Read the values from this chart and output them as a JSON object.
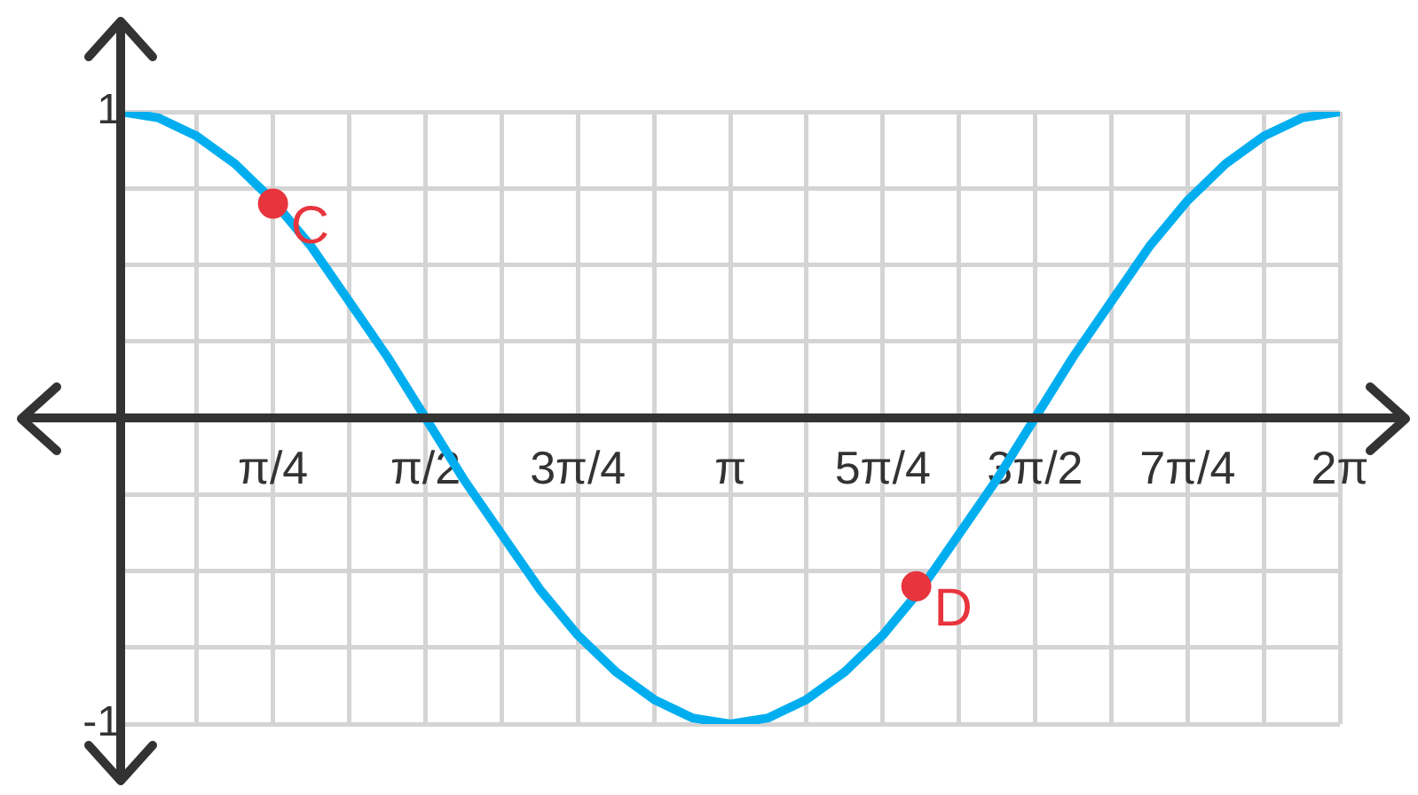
{
  "chart_data": {
    "type": "line",
    "xlim": [
      0,
      6.283
    ],
    "ylim": [
      -1,
      1
    ],
    "xticks": [
      {
        "value": 0,
        "label": null
      },
      {
        "value": 0.393,
        "label": null
      },
      {
        "value": 0.785,
        "label": "π/4"
      },
      {
        "value": 1.178,
        "label": null
      },
      {
        "value": 1.571,
        "label": "π/2"
      },
      {
        "value": 1.963,
        "label": null
      },
      {
        "value": 2.356,
        "label": "3π/4"
      },
      {
        "value": 2.749,
        "label": null
      },
      {
        "value": 3.142,
        "label": "π"
      },
      {
        "value": 3.534,
        "label": null
      },
      {
        "value": 3.927,
        "label": "5π/4"
      },
      {
        "value": 4.32,
        "label": null
      },
      {
        "value": 4.712,
        "label": "3π/2"
      },
      {
        "value": 5.105,
        "label": null
      },
      {
        "value": 5.498,
        "label": "7π/4"
      },
      {
        "value": 5.89,
        "label": null
      },
      {
        "value": 6.283,
        "label": "2π"
      }
    ],
    "yticks": [
      {
        "value": -1,
        "label": "-1"
      },
      {
        "value": -0.75,
        "label": null
      },
      {
        "value": -0.5,
        "label": null
      },
      {
        "value": -0.25,
        "label": null
      },
      {
        "value": 0,
        "label": null
      },
      {
        "value": 0.25,
        "label": null
      },
      {
        "value": 0.5,
        "label": null
      },
      {
        "value": 0.75,
        "label": null
      },
      {
        "value": 1,
        "label": "1"
      }
    ],
    "grid": true,
    "legend": false,
    "series": [
      {
        "color": "#00aeef",
        "marker": "none",
        "x": [
          0,
          0.196,
          0.393,
          0.589,
          0.785,
          0.982,
          1.178,
          1.374,
          1.571,
          1.767,
          1.963,
          2.16,
          2.356,
          2.553,
          2.749,
          2.945,
          3.142,
          3.338,
          3.534,
          3.731,
          3.927,
          4.123,
          4.32,
          4.516,
          4.712,
          4.909,
          5.105,
          5.301,
          5.498,
          5.694,
          5.89,
          6.087,
          6.283
        ],
        "values": [
          1,
          0.98,
          0.92,
          0.83,
          0.71,
          0.56,
          0.38,
          0.2,
          0,
          -0.2,
          -0.38,
          -0.56,
          -0.71,
          -0.83,
          -0.92,
          -0.98,
          -1,
          -0.98,
          -0.92,
          -0.83,
          -0.71,
          -0.56,
          -0.38,
          -0.2,
          0,
          0.2,
          0.38,
          0.56,
          0.71,
          0.83,
          0.92,
          0.98,
          1
        ]
      },
      {
        "type": "scatter",
        "color": "#e8343c",
        "marker": "circle",
        "x": [
          0.785,
          4.1
        ],
        "values": [
          0.7,
          -0.55
        ]
      }
    ],
    "annotations": [
      {
        "text": "C",
        "x": 0.785,
        "y": 0.7
      },
      {
        "text": "D",
        "x": 4.1,
        "y": -0.55
      }
    ]
  }
}
